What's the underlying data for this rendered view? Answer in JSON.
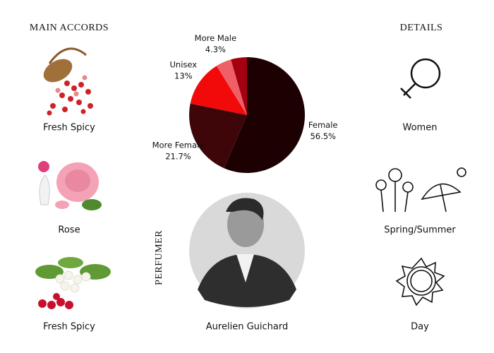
{
  "header": {
    "main_accords": "MAIN ACCORDS",
    "details": "DETAILS"
  },
  "accords": [
    "Fresh Spicy",
    "Rose",
    "Fresh Spicy"
  ],
  "details": [
    "Women",
    "Spring/Summer",
    "Day"
  ],
  "perfumer": {
    "label": "PERFUMER",
    "name": "Aurelien Guichard"
  },
  "chart_data": {
    "type": "pie",
    "categories": [
      "Female",
      "More Female",
      "Unisex",
      "More Male",
      null
    ],
    "values": [
      56.5,
      21.7,
      13,
      4.3,
      4.5
    ],
    "value_labels": [
      "56.5%",
      "21.7%",
      "13%",
      "4.3%",
      null
    ],
    "colors": [
      "#1c0002",
      "#3e0609",
      "#f20a0a",
      "#ef5f66",
      "#a5000f"
    ]
  }
}
